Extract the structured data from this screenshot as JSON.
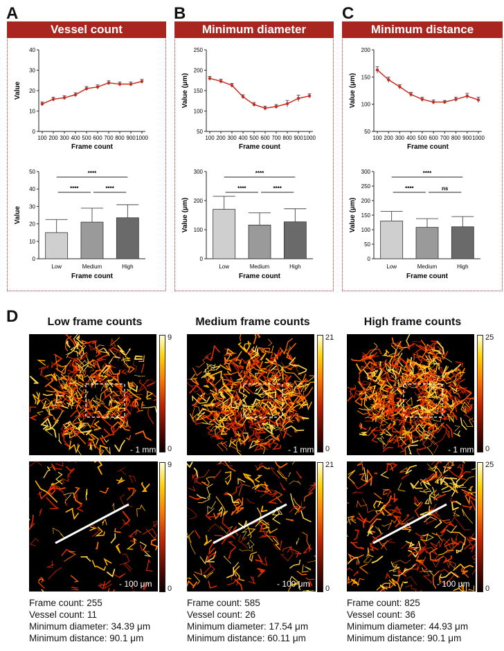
{
  "panels": {
    "A": {
      "letter": "A",
      "title": "Vessel count"
    },
    "B": {
      "letter": "B",
      "title": "Minimum diameter"
    },
    "C": {
      "letter": "C",
      "title": "Minimum distance"
    },
    "D": {
      "letter": "D"
    }
  },
  "chart_data": [
    {
      "id": "A-line",
      "type": "line",
      "x": [
        100,
        200,
        300,
        400,
        500,
        600,
        700,
        800,
        900,
        1000
      ],
      "y": [
        13.5,
        15.8,
        16.5,
        18,
        21,
        21.8,
        23.8,
        23.2,
        23.2,
        24.5
      ],
      "err": [
        1,
        1,
        1,
        1,
        1,
        1,
        1,
        1,
        1,
        1
      ],
      "xlabel": "Frame count",
      "ylabel": "Value",
      "ylim": [
        0,
        40
      ],
      "yticks": [
        0,
        10,
        20,
        30,
        40
      ],
      "xtick_labels": [
        "100",
        "200",
        "300",
        "400",
        "500",
        "600",
        "700",
        "800",
        "900",
        "1000"
      ],
      "color": "#c42b20"
    },
    {
      "id": "A-bar",
      "type": "bar",
      "categories": [
        "Low",
        "Medium",
        "High"
      ],
      "values": [
        15,
        21,
        23.5
      ],
      "errors": [
        7.5,
        8,
        7.5
      ],
      "colors": [
        "#cfcfcf",
        "#9a9a9a",
        "#6a6a6a"
      ],
      "xlabel": "Frame count",
      "ylabel": "Value",
      "ylim": [
        0,
        50
      ],
      "yticks": [
        0,
        10,
        20,
        30,
        40,
        50
      ],
      "annotations": [
        {
          "from": 0,
          "to": 2,
          "label": "****",
          "level": 0
        },
        {
          "from": 0,
          "to": 1,
          "label": "****",
          "level": 1
        },
        {
          "from": 1,
          "to": 2,
          "label": "****",
          "level": 1
        }
      ]
    },
    {
      "id": "B-line",
      "type": "line",
      "x": [
        100,
        200,
        300,
        400,
        500,
        600,
        700,
        800,
        900,
        1000
      ],
      "y": [
        180,
        173,
        163,
        135,
        116,
        107,
        111,
        118,
        131,
        137
      ],
      "err": [
        5,
        5,
        5,
        5,
        5,
        5,
        5,
        8,
        8,
        5
      ],
      "xlabel": "Frame count",
      "ylabel": "Value (μm)",
      "ylim": [
        50,
        250
      ],
      "yticks": [
        50,
        100,
        150,
        200,
        250
      ],
      "xtick_labels": [
        "100",
        "200",
        "300",
        "400",
        "500",
        "600",
        "700",
        "800",
        "900",
        "1000"
      ],
      "color": "#c42b20"
    },
    {
      "id": "B-bar",
      "type": "bar",
      "categories": [
        "Low",
        "Medium",
        "High"
      ],
      "values": [
        170,
        116,
        127
      ],
      "errors": [
        45,
        42,
        45
      ],
      "colors": [
        "#cfcfcf",
        "#9a9a9a",
        "#6a6a6a"
      ],
      "xlabel": "Frame count",
      "ylabel": "Value (μm)",
      "ylim": [
        0,
        300
      ],
      "yticks": [
        0,
        100,
        200,
        300
      ],
      "annotations": [
        {
          "from": 0,
          "to": 2,
          "label": "****",
          "level": 0
        },
        {
          "from": 0,
          "to": 1,
          "label": "****",
          "level": 1
        },
        {
          "from": 1,
          "to": 2,
          "label": "****",
          "level": 1
        }
      ]
    },
    {
      "id": "C-line",
      "type": "line",
      "x": [
        100,
        200,
        300,
        400,
        500,
        600,
        700,
        800,
        900,
        1000
      ],
      "y": [
        163,
        145,
        132,
        118,
        109,
        104,
        104,
        109,
        115,
        108
      ],
      "err": [
        6,
        5,
        4,
        4,
        4,
        4,
        3,
        4,
        5,
        5
      ],
      "xlabel": "Frame count",
      "ylabel": "Value (μm)",
      "ylim": [
        50,
        200
      ],
      "yticks": [
        50,
        100,
        150,
        200
      ],
      "xtick_labels": [
        "100",
        "200",
        "300",
        "400",
        "500",
        "600",
        "700",
        "800",
        "900",
        "1000"
      ],
      "color": "#c42b20"
    },
    {
      "id": "C-bar",
      "type": "bar",
      "categories": [
        "Low",
        "Medium",
        "High"
      ],
      "values": [
        130,
        108,
        110
      ],
      "errors": [
        33,
        30,
        35
      ],
      "colors": [
        "#cfcfcf",
        "#9a9a9a",
        "#6a6a6a"
      ],
      "xlabel": "Frame count",
      "ylabel": "Value (μm)",
      "ylim": [
        0,
        300
      ],
      "yticks": [
        0,
        50,
        100,
        150,
        200,
        250,
        300
      ],
      "annotations": [
        {
          "from": 0,
          "to": 2,
          "label": "****",
          "level": 0
        },
        {
          "from": 0,
          "to": 1,
          "label": "****",
          "level": 1
        },
        {
          "from": 1,
          "to": 2,
          "label": "ns",
          "level": 1
        }
      ]
    }
  ],
  "images": {
    "columns": [
      {
        "title": "Low frame counts",
        "overview_scalebar": "1 mm",
        "zoom_scalebar": "100 μm",
        "colorbar_max": "9",
        "colorbar_min": "0",
        "caption": {
          "frame_count": "Frame count: 255",
          "vessel_count": "Vessel count: 11",
          "min_diameter": "Minimum diameter: 34.39 μm",
          "min_distance": "Minimum distance: 90.1 μm"
        }
      },
      {
        "title": "Medium frame counts",
        "overview_scalebar": "1 mm",
        "zoom_scalebar": "100 μm",
        "colorbar_max": "21",
        "colorbar_min": "0",
        "caption": {
          "frame_count": "Frame count: 585",
          "vessel_count": "Vessel count: 26",
          "min_diameter": "Minimum diameter: 17.54 μm",
          "min_distance": "Minimum distance: 60.11 μm"
        }
      },
      {
        "title": "High frame counts",
        "overview_scalebar": "1 mm",
        "zoom_scalebar": "100 μm",
        "colorbar_max": "25",
        "colorbar_min": "0",
        "caption": {
          "frame_count": "Frame count: 825",
          "vessel_count": "Vessel count: 36",
          "min_diameter": "Minimum diameter: 44.93 μm",
          "min_distance": "Minimum distance: 90.1 μm"
        }
      }
    ]
  }
}
